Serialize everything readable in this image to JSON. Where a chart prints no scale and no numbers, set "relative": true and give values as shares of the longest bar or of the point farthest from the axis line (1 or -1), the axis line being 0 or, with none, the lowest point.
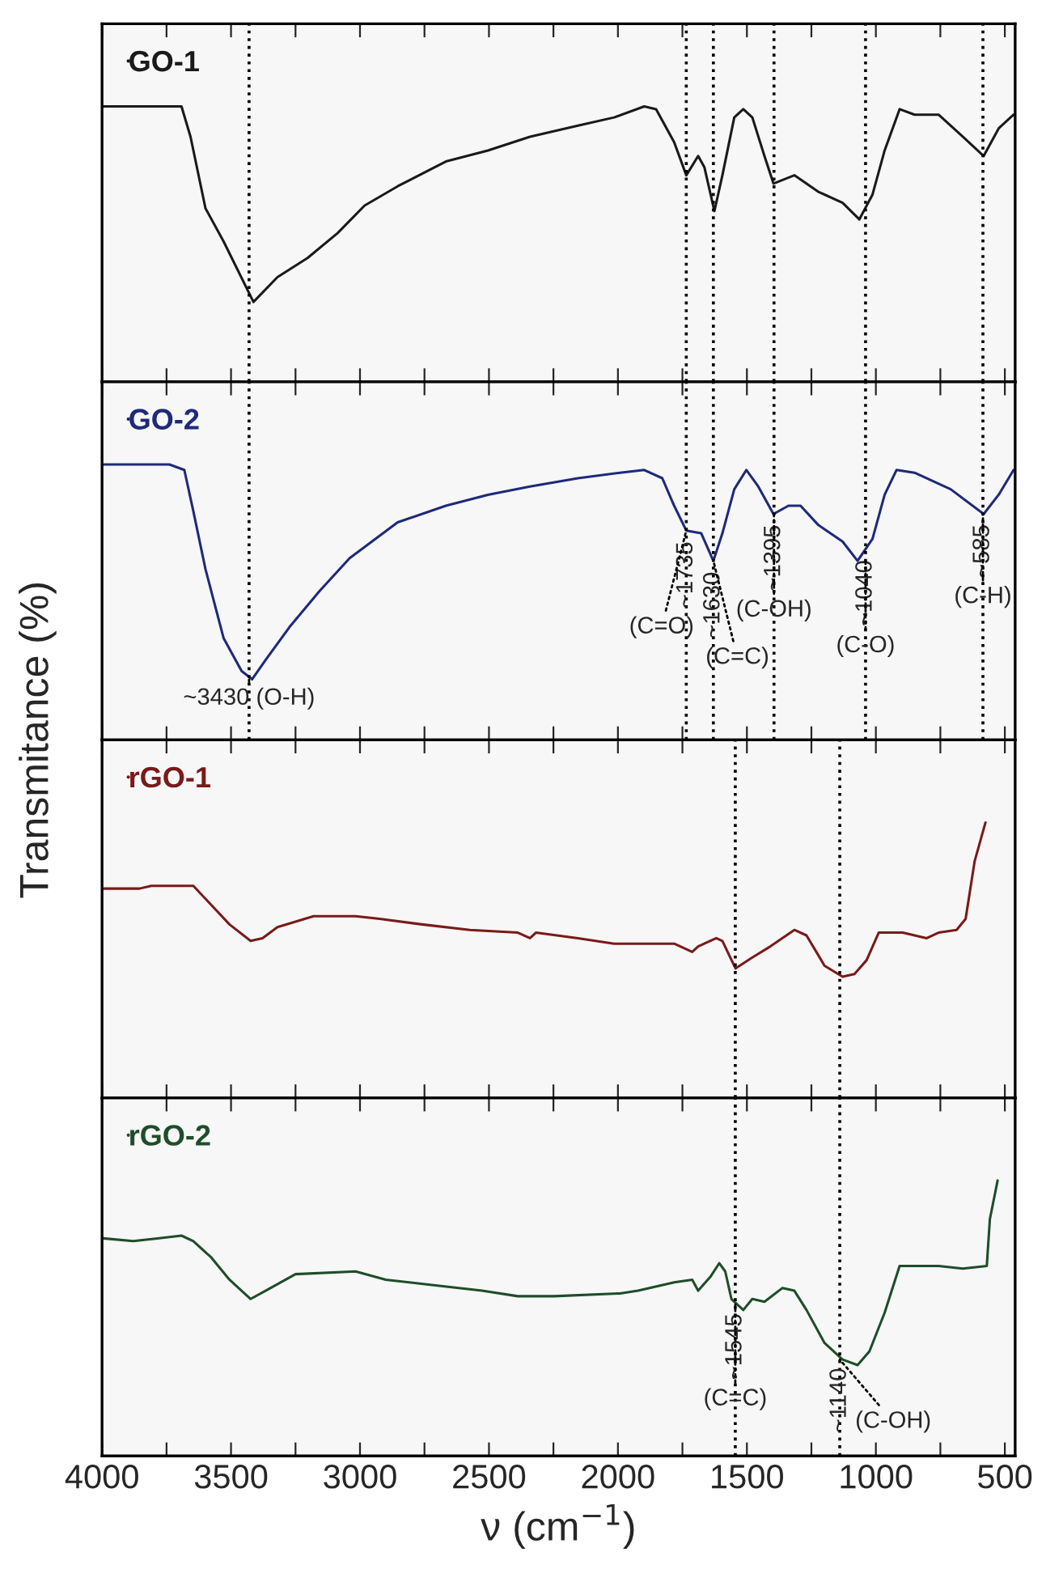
{
  "chart_data": [
    {
      "type": "line",
      "relative": true,
      "xlim": [
        4000,
        460
      ],
      "xticks": [
        4000,
        {
          "value": 3750,
          "label": null
        },
        3500,
        {
          "value": 3250,
          "label": null
        },
        3000,
        {
          "value": 2750,
          "label": null
        },
        2500,
        {
          "value": 2250,
          "label": null
        },
        2000,
        {
          "value": 1750,
          "label": null
        },
        1500,
        {
          "value": 1250,
          "label": null
        },
        1000,
        {
          "value": 750,
          "label": null
        },
        500
      ],
      "tick_labels": false,
      "grid": false,
      "legend": "top left",
      "series": [
        {
          "name": "GO-1",
          "color": "#1a1a1a",
          "x": [
            3995,
            3692,
            3657,
            3599,
            3529,
            3413,
            3320,
            3203,
            3087,
            2982,
            2854,
            2667,
            2504,
            2341,
            2155,
            2015,
            1898,
            1852,
            1782,
            1735,
            1689,
            1665,
            1626,
            1595,
            1549,
            1514,
            1479,
            1432,
            1397,
            1316,
            1223,
            1129,
            1064,
            1013,
            966,
            908,
            850,
            757,
            663,
            582,
            524,
            466
          ],
          "values": [
            1.0,
            1.0,
            0.89,
            0.63,
            0.51,
            0.29,
            0.38,
            0.45,
            0.54,
            0.64,
            0.71,
            0.8,
            0.84,
            0.89,
            0.93,
            0.96,
            1.0,
            0.99,
            0.87,
            0.75,
            0.82,
            0.78,
            0.62,
            0.75,
            0.96,
            0.99,
            0.96,
            0.82,
            0.72,
            0.75,
            0.69,
            0.65,
            0.59,
            0.68,
            0.84,
            0.99,
            0.97,
            0.97,
            0.89,
            0.82,
            0.92,
            0.97
          ]
        }
      ],
      "ref_lines": [
        {
          "axis": "x",
          "value": 3430,
          "line_style": "dotted"
        },
        {
          "axis": "x",
          "value": 1735,
          "line_style": "dotted"
        },
        {
          "axis": "x",
          "value": 1630,
          "line_style": "dotted"
        },
        {
          "axis": "x",
          "value": 1395,
          "line_style": "dotted"
        },
        {
          "axis": "x",
          "value": 1040,
          "line_style": "dotted"
        },
        {
          "axis": "x",
          "value": 585,
          "line_style": "dotted"
        }
      ]
    },
    {
      "type": "line",
      "relative": true,
      "xlim": [
        4000,
        460
      ],
      "xticks": [
        4000,
        {
          "value": 3750,
          "label": null
        },
        3500,
        {
          "value": 3250,
          "label": null
        },
        3000,
        {
          "value": 2750,
          "label": null
        },
        2500,
        {
          "value": 2250,
          "label": null
        },
        2000,
        {
          "value": 1750,
          "label": null
        },
        1500,
        {
          "value": 1250,
          "label": null
        },
        1000,
        {
          "value": 750,
          "label": null
        },
        500
      ],
      "tick_labels": false,
      "grid": false,
      "legend": "top left",
      "series": [
        {
          "name": "GO-2",
          "color": "#1f2a7a",
          "x": [
            3995,
            3739,
            3681,
            3646,
            3599,
            3529,
            3459,
            3418,
            3366,
            3273,
            3157,
            3040,
            2854,
            2667,
            2504,
            2341,
            2155,
            1992,
            1898,
            1828,
            1782,
            1735,
            1677,
            1630,
            1595,
            1549,
            1502,
            1456,
            1397,
            1339,
            1292,
            1223,
            1129,
            1071,
            1013,
            966,
            920,
            850,
            710,
            582,
            524,
            466
          ],
          "values": [
            1.0,
            1.0,
            0.98,
            0.83,
            0.62,
            0.37,
            0.25,
            0.22,
            0.29,
            0.41,
            0.54,
            0.66,
            0.79,
            0.85,
            0.89,
            0.92,
            0.95,
            0.97,
            0.98,
            0.95,
            0.85,
            0.76,
            0.75,
            0.65,
            0.75,
            0.91,
            0.98,
            0.92,
            0.82,
            0.85,
            0.85,
            0.78,
            0.72,
            0.65,
            0.73,
            0.89,
            0.98,
            0.97,
            0.91,
            0.82,
            0.89,
            0.98
          ]
        }
      ],
      "ref_lines": [
        {
          "axis": "x",
          "value": 3430,
          "line_style": "dotted"
        },
        {
          "axis": "x",
          "value": 1735,
          "label": "~1735",
          "line_style": "dotted"
        },
        {
          "axis": "x",
          "value": 1630,
          "label": "~1630",
          "line_style": "dotted"
        },
        {
          "axis": "x",
          "value": 1395,
          "label": "~1395",
          "line_style": "dotted"
        },
        {
          "axis": "x",
          "value": 1040,
          "label": "~1040",
          "line_style": "dotted"
        },
        {
          "axis": "x",
          "value": 585,
          "label": "~585",
          "line_style": "dotted"
        }
      ],
      "annotations": [
        {
          "text": "~3430 (O-H)",
          "x": 3430,
          "y": 0.22
        },
        {
          "text": "(C=O)",
          "x": 1735,
          "y": 0.76
        },
        {
          "text": "(C=C)",
          "x": 1630,
          "y": 0.65
        },
        {
          "text": "(C-OH)",
          "x": 1395,
          "y": 0.82
        },
        {
          "text": "(C-O)",
          "x": 1040,
          "y": 0.66
        },
        {
          "text": "(C-H)",
          "x": 585,
          "y": 0.82
        }
      ]
    },
    {
      "type": "line",
      "relative": true,
      "ylabel": "Transmitance (%)",
      "xlim": [
        4000,
        460
      ],
      "xticks": [
        4000,
        {
          "value": 3750,
          "label": null
        },
        3500,
        {
          "value": 3250,
          "label": null
        },
        3000,
        {
          "value": 2750,
          "label": null
        },
        2500,
        {
          "value": 2250,
          "label": null
        },
        2000,
        {
          "value": 1750,
          "label": null
        },
        1500,
        {
          "value": 1250,
          "label": null
        },
        1000,
        {
          "value": 750,
          "label": null
        },
        500
      ],
      "tick_labels": false,
      "grid": false,
      "legend": "top left",
      "series": [
        {
          "name": "rGO-1",
          "color": "#7a1a1a",
          "x": [
            3995,
            3855,
            3809,
            3716,
            3646,
            3576,
            3506,
            3424,
            3378,
            3320,
            3180,
            3017,
            2924,
            2760,
            2574,
            2388,
            2341,
            2318,
            2155,
            2015,
            1782,
            1712,
            1689,
            1619,
            1595,
            1544,
            1479,
            1409,
            1316,
            1269,
            1199,
            1129,
            1083,
            1036,
            989,
            896,
            803,
            757,
            687,
            652,
            617,
            575
          ],
          "values": [
            0.76,
            0.76,
            0.77,
            0.77,
            0.77,
            0.7,
            0.63,
            0.57,
            0.58,
            0.62,
            0.66,
            0.66,
            0.65,
            0.63,
            0.61,
            0.6,
            0.58,
            0.6,
            0.58,
            0.56,
            0.56,
            0.53,
            0.55,
            0.58,
            0.57,
            0.47,
            0.51,
            0.55,
            0.61,
            0.59,
            0.48,
            0.44,
            0.45,
            0.5,
            0.6,
            0.6,
            0.58,
            0.6,
            0.61,
            0.65,
            0.86,
            1.0
          ]
        }
      ],
      "ref_lines": [
        {
          "axis": "x",
          "value": 1545,
          "line_style": "dotted"
        },
        {
          "axis": "x",
          "value": 1140,
          "line_style": "dotted"
        }
      ]
    },
    {
      "type": "line",
      "relative": true,
      "xlabel": "ν (cm$^{−1}$)",
      "xlim": [
        4000,
        460
      ],
      "xticks": [
        4000,
        {
          "value": 3750,
          "label": null
        },
        3500,
        {
          "value": 3250,
          "label": null
        },
        3000,
        {
          "value": 2750,
          "label": null
        },
        2500,
        {
          "value": 2250,
          "label": null
        },
        2000,
        {
          "value": 1750,
          "label": null
        },
        1500,
        {
          "value": 1250,
          "label": null
        },
        1000,
        {
          "value": 750,
          "label": null
        },
        500
      ],
      "tick_labels": "x",
      "grid": false,
      "legend": "top left",
      "series": [
        {
          "name": "rGO-2",
          "color": "#1f4d2a",
          "x": [
            3995,
            3879,
            3786,
            3692,
            3646,
            3576,
            3506,
            3424,
            3366,
            3250,
            3017,
            2900,
            2714,
            2527,
            2388,
            2248,
            1992,
            1922,
            1782,
            1712,
            1689,
            1642,
            1607,
            1584,
            1560,
            1514,
            1479,
            1432,
            1362,
            1316,
            1269,
            1199,
            1129,
            1071,
            1025,
            966,
            908,
            757,
            663,
            570,
            558,
            528
          ],
          "values": [
            0.79,
            0.78,
            0.79,
            0.8,
            0.78,
            0.72,
            0.64,
            0.57,
            0.6,
            0.66,
            0.67,
            0.64,
            0.62,
            0.6,
            0.58,
            0.58,
            0.59,
            0.6,
            0.63,
            0.64,
            0.6,
            0.65,
            0.7,
            0.67,
            0.57,
            0.53,
            0.57,
            0.56,
            0.61,
            0.6,
            0.53,
            0.41,
            0.35,
            0.33,
            0.38,
            0.52,
            0.69,
            0.69,
            0.68,
            0.69,
            0.86,
            1.0
          ]
        }
      ],
      "ref_lines": [
        {
          "axis": "x",
          "value": 1545,
          "label": "~1545",
          "line_style": "dotted"
        },
        {
          "axis": "x",
          "value": 1140,
          "label": "~1140",
          "line_style": "dotted"
        }
      ],
      "annotations": [
        {
          "text": "(C=C)",
          "x": 1545,
          "y": 0.55
        },
        {
          "text": "(C-OH)",
          "x": 1140,
          "y": 0.35
        }
      ]
    }
  ]
}
